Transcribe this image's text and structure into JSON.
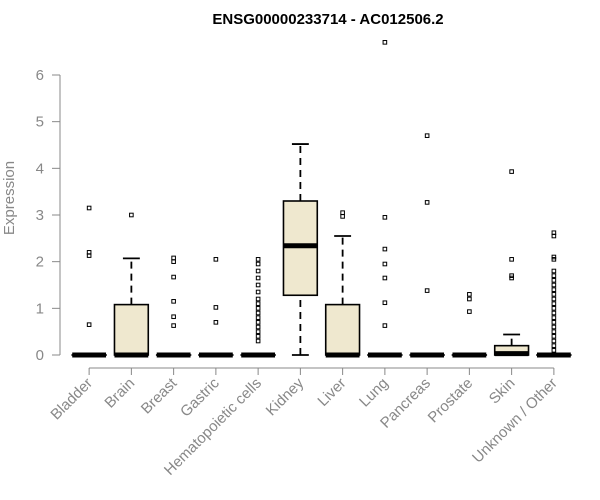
{
  "chart_data": {
    "type": "box",
    "title": "ENSG00000233714 - AC012506.2",
    "ylabel": "Expression",
    "xlabel": "",
    "ylim": [
      0,
      6
    ],
    "yticks": [
      0,
      1,
      2,
      3,
      4,
      5,
      6
    ],
    "grid": false,
    "box_color": "#efe8cf",
    "categories": [
      "Bladder",
      "Brain",
      "Breast",
      "Gastric",
      "Hematopoietic cells",
      "Kidney",
      "Liver",
      "Lung",
      "Pancreas",
      "Prostate",
      "Skin",
      "Unknown / Other"
    ],
    "series": [
      {
        "category": "Bladder",
        "min": 0,
        "q1": 0,
        "median": 0,
        "q3": 0,
        "max": 0,
        "outliers": [
          0.65,
          2.13,
          2.2,
          3.15
        ]
      },
      {
        "category": "Brain",
        "min": 0,
        "q1": 0,
        "median": 0,
        "q3": 1.08,
        "max": 2.07,
        "outliers": [
          3.0
        ]
      },
      {
        "category": "Breast",
        "min": 0,
        "q1": 0,
        "median": 0,
        "q3": 0,
        "max": 0,
        "outliers": [
          0.63,
          0.82,
          1.15,
          1.67,
          2.0,
          2.08
        ]
      },
      {
        "category": "Gastric",
        "min": 0,
        "q1": 0,
        "median": 0,
        "q3": 0,
        "max": 0,
        "outliers": [
          0.7,
          1.02,
          2.05
        ]
      },
      {
        "category": "Hematopoietic cells",
        "min": 0,
        "q1": 0,
        "median": 0,
        "q3": 0,
        "max": 0,
        "outliers": [
          0.3,
          0.4,
          0.5,
          0.6,
          0.7,
          0.8,
          0.9,
          1.0,
          1.1,
          1.2,
          1.35,
          1.5,
          1.65,
          1.8,
          1.95,
          2.05
        ]
      },
      {
        "category": "Kidney",
        "min": 0,
        "q1": 1.28,
        "median": 2.34,
        "q3": 3.3,
        "max": 4.52,
        "outliers": []
      },
      {
        "category": "Liver",
        "min": 0,
        "q1": 0,
        "median": 0,
        "q3": 1.08,
        "max": 2.55,
        "outliers": [
          2.97,
          3.05
        ]
      },
      {
        "category": "Lung",
        "min": 0,
        "q1": 0,
        "median": 0,
        "q3": 0,
        "max": 0,
        "outliers": [
          0.63,
          1.12,
          1.65,
          1.95,
          2.27,
          2.95,
          6.7
        ]
      },
      {
        "category": "Pancreas",
        "min": 0,
        "q1": 0,
        "median": 0,
        "q3": 0,
        "max": 0,
        "outliers": [
          1.38,
          3.27,
          4.7
        ]
      },
      {
        "category": "Prostate",
        "min": 0,
        "q1": 0,
        "median": 0,
        "q3": 0,
        "max": 0,
        "outliers": [
          0.93,
          1.2,
          1.3
        ]
      },
      {
        "category": "Skin",
        "min": 0,
        "q1": 0,
        "median": 0.03,
        "q3": 0.2,
        "max": 0.44,
        "outliers": [
          1.65,
          1.7,
          2.05,
          3.93
        ]
      },
      {
        "category": "Unknown / Other",
        "min": 0,
        "q1": 0,
        "median": 0,
        "q3": 0,
        "max": 0,
        "outliers": [
          0.1,
          0.2,
          0.3,
          0.4,
          0.5,
          0.6,
          0.7,
          0.8,
          0.9,
          1.0,
          1.1,
          1.2,
          1.3,
          1.4,
          1.5,
          1.6,
          1.7,
          1.8,
          2.05,
          2.1,
          2.55,
          2.62
        ]
      }
    ]
  }
}
